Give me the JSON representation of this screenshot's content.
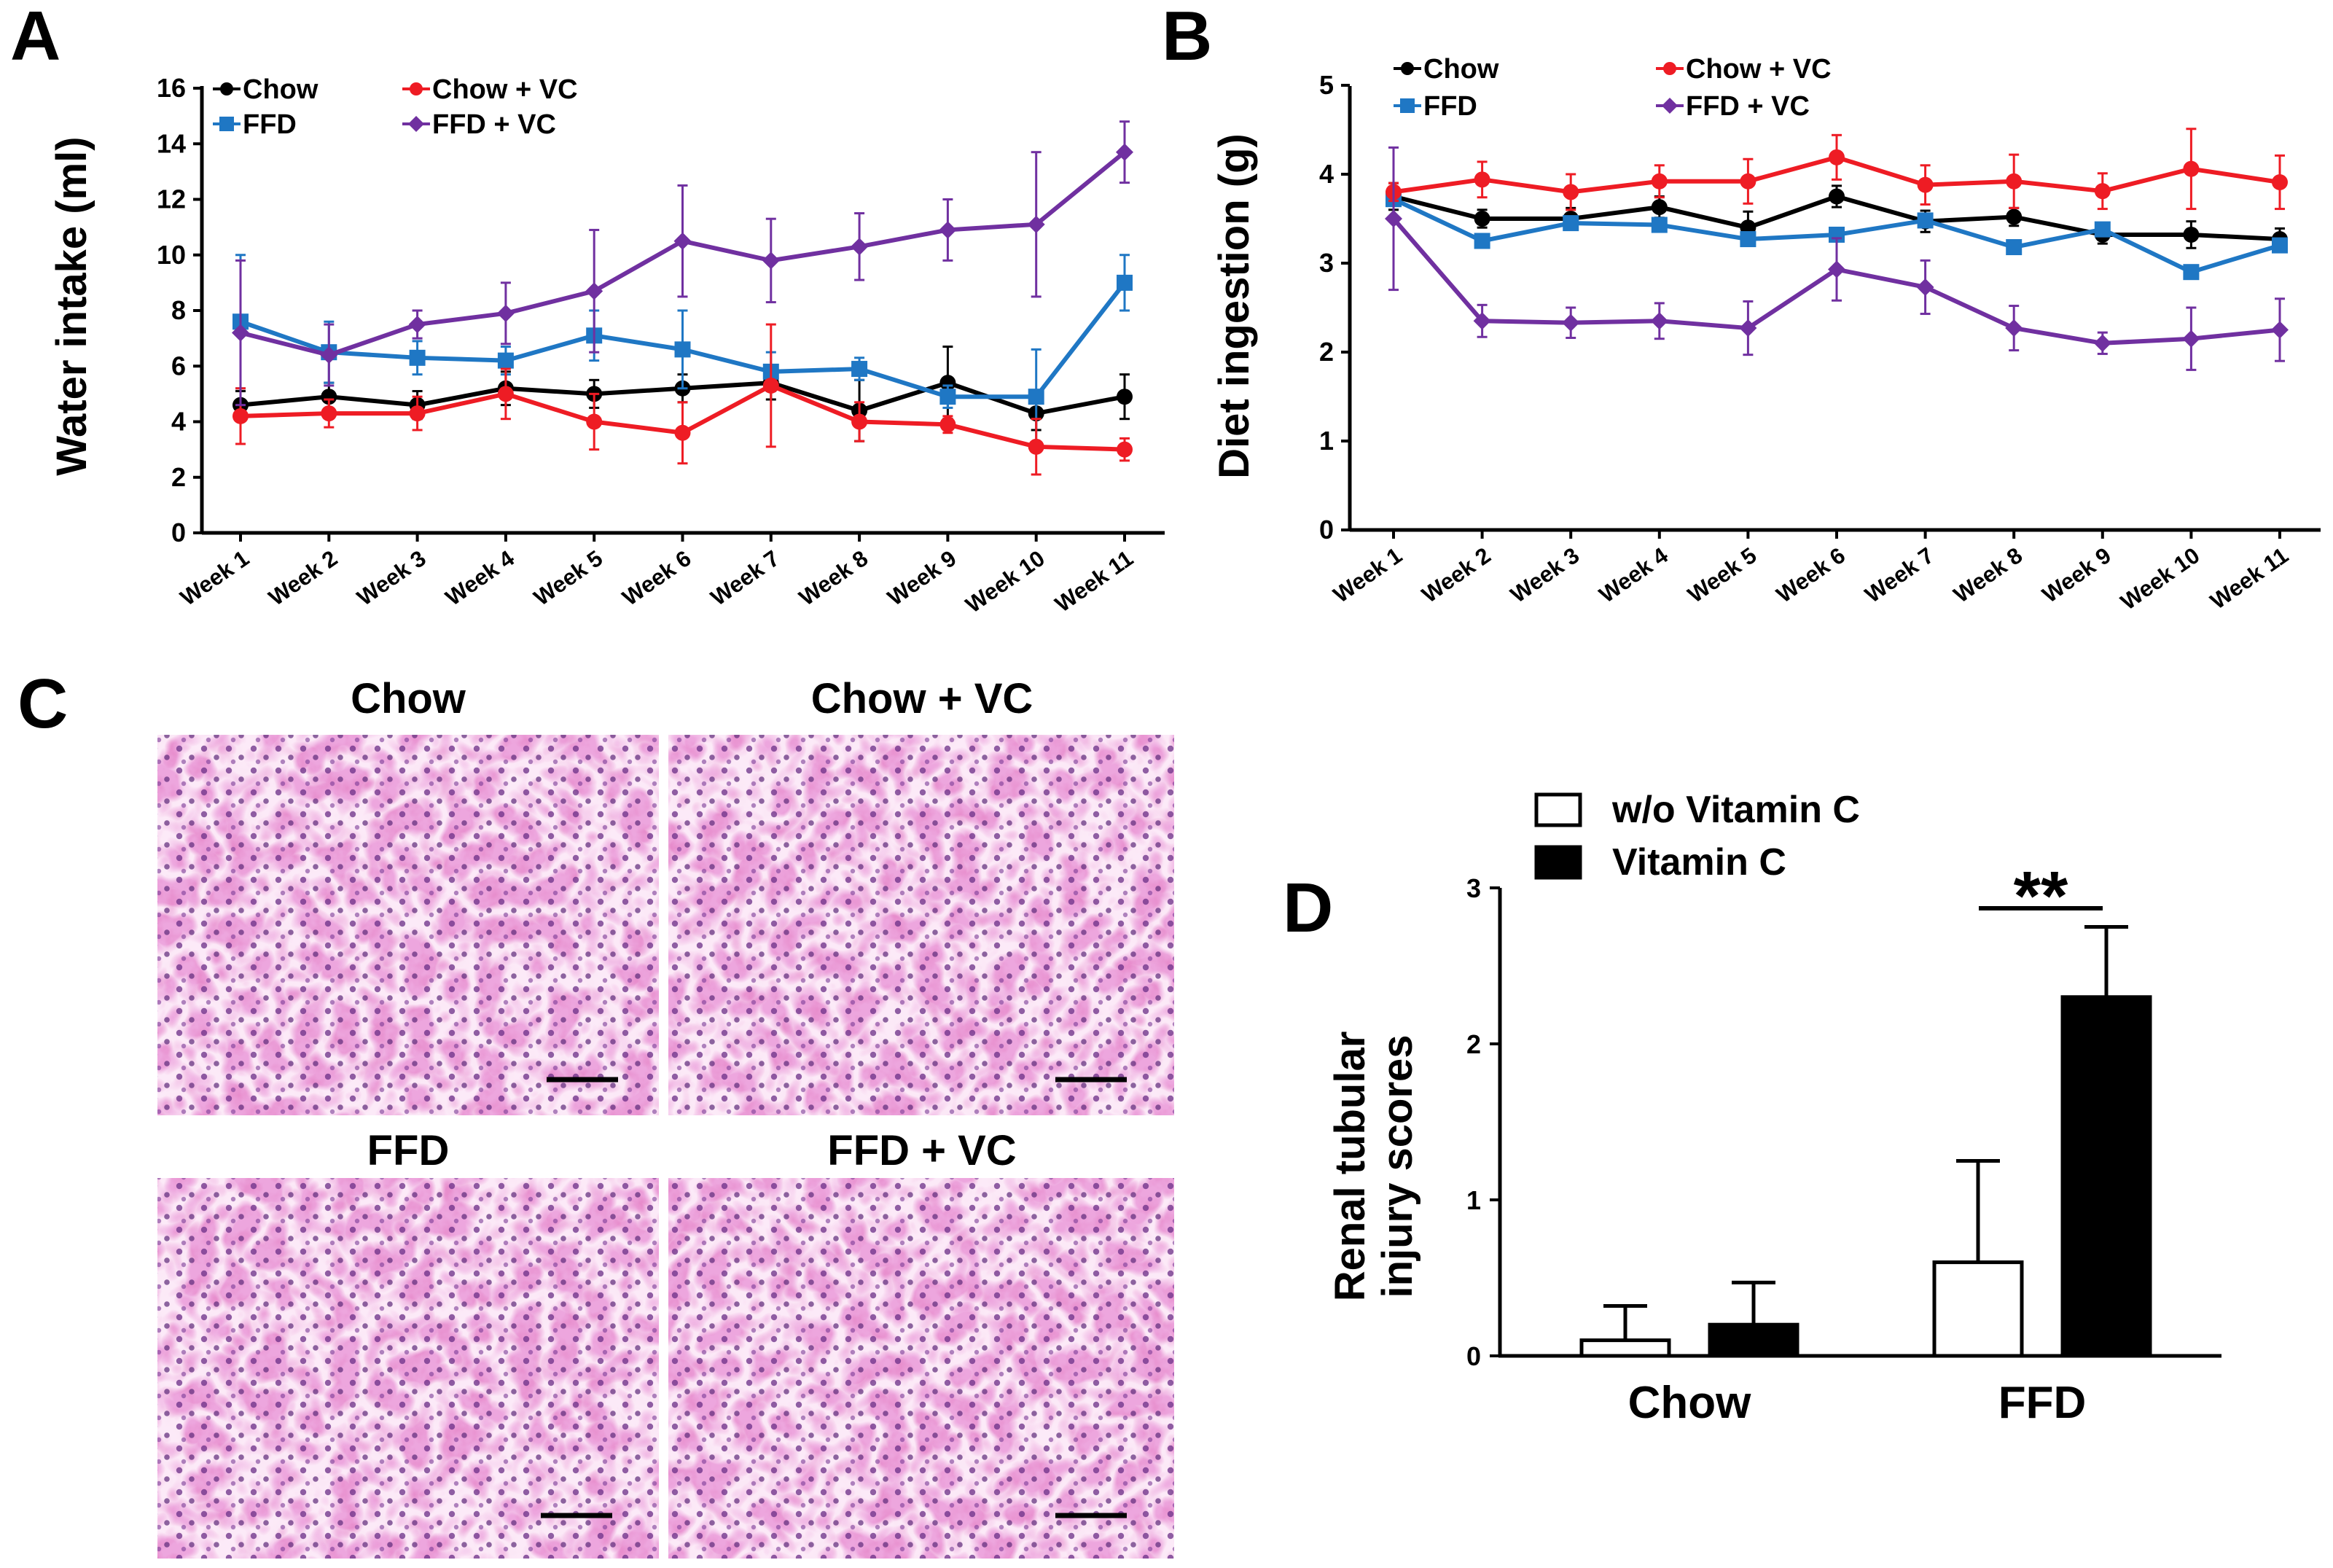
{
  "chart_data": [
    {
      "panel": "A",
      "type": "line",
      "title": "",
      "ylabel": "Water intake (ml)",
      "xlabel": "",
      "ylim": [
        0,
        16
      ],
      "yticks": [
        "0",
        "2",
        "4",
        "6",
        "8",
        "10",
        "12",
        "14",
        "16"
      ],
      "categories": [
        "Week 1",
        "Week 2",
        "Week 3",
        "Week 4",
        "Week 5",
        "Week 6",
        "Week 7",
        "Week 8",
        "Week 9",
        "Week 10",
        "Week 11"
      ],
      "legend": [
        "Chow",
        "FFD",
        "Chow + VC",
        "FFD + VC"
      ],
      "series": [
        {
          "name": "Chow",
          "color": "#000000",
          "marker": "circle",
          "values": [
            4.6,
            4.9,
            4.6,
            5.2,
            5.0,
            5.2,
            5.4,
            4.4,
            5.4,
            4.3,
            4.9
          ],
          "errors": [
            0.5,
            0.5,
            0.5,
            0.6,
            0.5,
            0.5,
            0.6,
            1.1,
            1.3,
            0.6,
            0.8
          ]
        },
        {
          "name": "FFD",
          "color": "#1f77c4",
          "marker": "square",
          "values": [
            7.6,
            6.5,
            6.3,
            6.2,
            7.1,
            6.6,
            5.8,
            5.9,
            4.9,
            4.9,
            9.0
          ],
          "errors": [
            2.4,
            1.1,
            0.6,
            0.5,
            0.9,
            1.4,
            0.7,
            0.4,
            0.4,
            1.7,
            1.0
          ]
        },
        {
          "name": "Chow + VC",
          "color": "#ee1c24",
          "marker": "circle",
          "values": [
            4.2,
            4.3,
            4.3,
            5.0,
            4.0,
            3.6,
            5.3,
            4.0,
            3.9,
            3.1,
            3.0
          ],
          "errors": [
            1.0,
            0.5,
            0.6,
            0.9,
            1.0,
            1.1,
            2.2,
            0.7,
            0.3,
            1.0,
            0.4
          ]
        },
        {
          "name": "FFD + VC",
          "color": "#7030a0",
          "marker": "diamond",
          "values": [
            7.2,
            6.4,
            7.5,
            7.9,
            8.7,
            10.5,
            9.8,
            10.3,
            10.9,
            11.1,
            13.7
          ],
          "errors": [
            2.6,
            1.1,
            0.5,
            1.1,
            2.2,
            2.0,
            1.5,
            1.2,
            1.1,
            2.6,
            1.1
          ]
        }
      ]
    },
    {
      "panel": "B",
      "type": "line",
      "title": "",
      "ylabel": "Diet ingestion (g)",
      "xlabel": "",
      "ylim": [
        0,
        5
      ],
      "yticks": [
        "0",
        "1",
        "2",
        "3",
        "4",
        "5"
      ],
      "categories": [
        "Week 1",
        "Week 2",
        "Week 3",
        "Week 4",
        "Week 5",
        "Week 6",
        "Week 7",
        "Week 8",
        "Week 9",
        "Week 10",
        "Week 11"
      ],
      "legend": [
        "Chow",
        "FFD",
        "Chow + VC",
        "FFD + VC"
      ],
      "series": [
        {
          "name": "Chow",
          "color": "#000000",
          "marker": "circle",
          "values": [
            3.75,
            3.5,
            3.5,
            3.63,
            3.4,
            3.75,
            3.47,
            3.52,
            3.32,
            3.32,
            3.27
          ],
          "errors": [
            0.15,
            0.1,
            0.12,
            0.12,
            0.18,
            0.12,
            0.12,
            0.1,
            0.1,
            0.15,
            0.12
          ]
        },
        {
          "name": "FFD",
          "color": "#1f77c4",
          "marker": "square",
          "values": [
            3.72,
            3.25,
            3.45,
            3.43,
            3.27,
            3.32,
            3.48,
            3.18,
            3.38,
            2.9,
            3.2
          ]
        },
        {
          "name": "Chow + VC",
          "color": "#ee1c24",
          "marker": "circle",
          "values": [
            3.8,
            3.94,
            3.8,
            3.92,
            3.92,
            4.19,
            3.88,
            3.92,
            3.81,
            4.06,
            3.91
          ],
          "errors": [
            0.1,
            0.2,
            0.2,
            0.18,
            0.25,
            0.25,
            0.22,
            0.3,
            0.2,
            0.45,
            0.3
          ]
        },
        {
          "name": "FFD + VC",
          "color": "#7030a0",
          "marker": "diamond",
          "values": [
            3.5,
            2.35,
            2.33,
            2.35,
            2.27,
            2.93,
            2.73,
            2.27,
            2.1,
            2.15,
            2.25
          ],
          "errors": [
            0.8,
            0.18,
            0.17,
            0.2,
            0.3,
            0.35,
            0.3,
            0.25,
            0.12,
            0.35,
            0.35
          ]
        }
      ]
    },
    {
      "panel": "D",
      "type": "bar",
      "title": "",
      "ylabel": "Renal tubular injury scores",
      "xlabel": "",
      "ylim": [
        0,
        3
      ],
      "yticks": [
        "0",
        "1",
        "2",
        "3"
      ],
      "categories": [
        "Chow",
        "FFD"
      ],
      "legend": [
        "w/o Vitamin C",
        "Vitamin C"
      ],
      "series": [
        {
          "name": "w/o Vitamin C",
          "color": "#ffffff",
          "values": [
            0.1,
            0.6
          ],
          "errors": [
            0.22,
            0.65
          ]
        },
        {
          "name": "Vitamin C",
          "color": "#000000",
          "values": [
            0.2,
            2.3
          ],
          "errors": [
            0.27,
            0.45
          ]
        }
      ],
      "annotations": [
        {
          "text": "**",
          "between": "FFD"
        }
      ]
    }
  ],
  "figure": {
    "panel_labels": {
      "a": "A",
      "b": "B",
      "c": "C",
      "d": "D"
    },
    "legend_labels": {
      "chow": "Chow",
      "ffd": "FFD",
      "chow_vc": "Chow + VC",
      "ffd_vc": "FFD + VC"
    },
    "colors": {
      "chow": "#000000",
      "ffd": "#1f77c4",
      "chow_vc": "#ee1c24",
      "ffd_vc": "#7030a0",
      "tissue_pink": "#e58ad0",
      "nuclei": "#6a2f86"
    },
    "micrographs": {
      "chow": "Chow",
      "chow_vc": "Chow + VC",
      "ffd": "FFD",
      "ffd_vc": "FFD + VC"
    },
    "d_legend": {
      "without": "w/o Vitamin C",
      "with": "Vitamin C"
    },
    "d_ylabel_line1": "Renal tubular",
    "d_ylabel_line2": "injury scores",
    "d_significance": "**"
  }
}
